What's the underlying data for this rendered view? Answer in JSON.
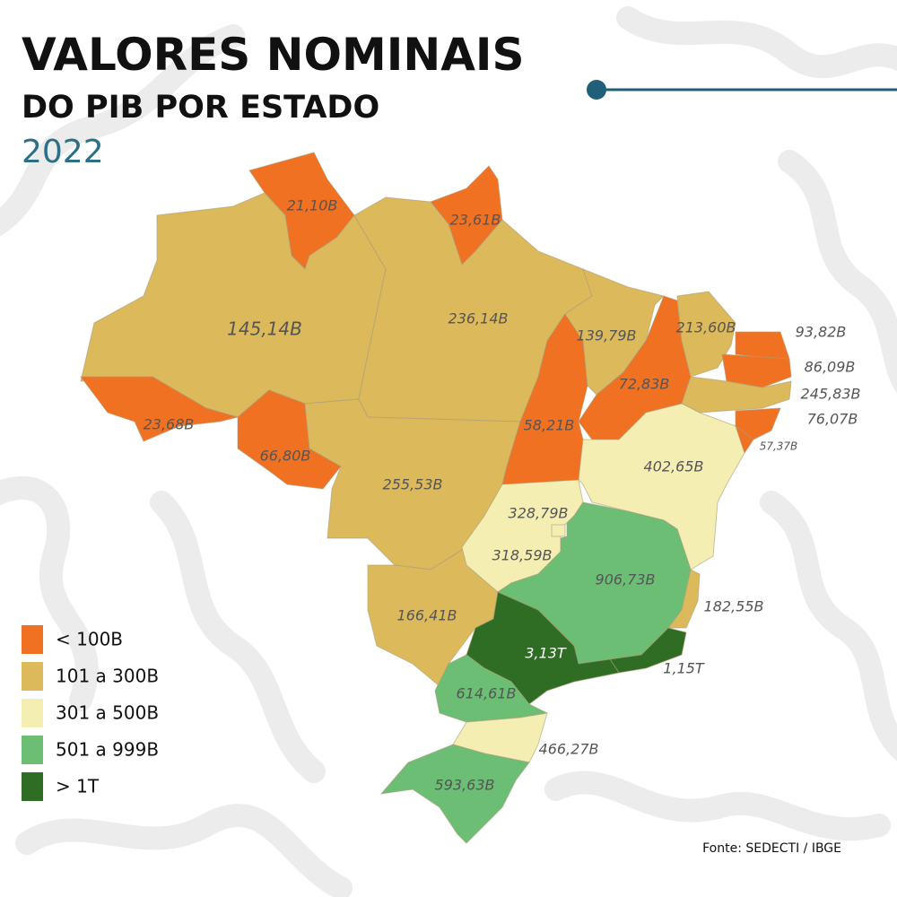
{
  "header": {
    "title": "VALORES NOMINAIS",
    "subtitle": "DO PIB POR ESTADO",
    "year": "2022"
  },
  "legend": {
    "items": [
      {
        "label": "< 100B",
        "color": "#f07122"
      },
      {
        "label": "101 a 300B",
        "color": "#dcb95b"
      },
      {
        "label": "301 a 500B",
        "color": "#f4eeb3"
      },
      {
        "label": "501 a 999B",
        "color": "#6cbe75"
      },
      {
        "label": "> 1T",
        "color": "#2e6d23"
      }
    ]
  },
  "states": [
    {
      "label": "21,10B",
      "color": "#f07122"
    },
    {
      "label": "23,61B",
      "color": "#f07122"
    },
    {
      "label": "145,14B",
      "color": "#dcb95b"
    },
    {
      "label": "236,14B",
      "color": "#dcb95b"
    },
    {
      "label": "23,68B",
      "color": "#f07122"
    },
    {
      "label": "66,80B",
      "color": "#f07122"
    },
    {
      "label": "255,53B",
      "color": "#dcb95b"
    },
    {
      "label": "166,41B",
      "color": "#dcb95b"
    },
    {
      "label": "58,21B",
      "color": "#f07122"
    },
    {
      "label": "139,79B",
      "color": "#dcb95b"
    },
    {
      "label": "72,83B",
      "color": "#f07122"
    },
    {
      "label": "213,60B",
      "color": "#dcb95b"
    },
    {
      "label": "93,82B",
      "color": "#f07122"
    },
    {
      "label": "86,09B",
      "color": "#f07122"
    },
    {
      "label": "245,83B",
      "color": "#dcb95b"
    },
    {
      "label": "76,07B",
      "color": "#f07122"
    },
    {
      "label": "57,37B",
      "color": "#f07122"
    },
    {
      "label": "402,65B",
      "color": "#f4eeb3"
    },
    {
      "label": "318,59B",
      "color": "#f4eeb3"
    },
    {
      "label": "328,79B",
      "color": "#f4eeb3"
    },
    {
      "label": "906,73B",
      "color": "#6cbe75"
    },
    {
      "label": "182,55B",
      "color": "#dcb95b"
    },
    {
      "label": "1,15T",
      "color": "#2e6d23"
    },
    {
      "label": "3,13T",
      "color": "#2e6d23"
    },
    {
      "label": "614,61B",
      "color": "#6cbe75"
    },
    {
      "label": "466,27B",
      "color": "#f4eeb3"
    },
    {
      "label": "593,63B",
      "color": "#6cbe75"
    }
  ],
  "source": "Fonte: SEDECTI / IBGE"
}
